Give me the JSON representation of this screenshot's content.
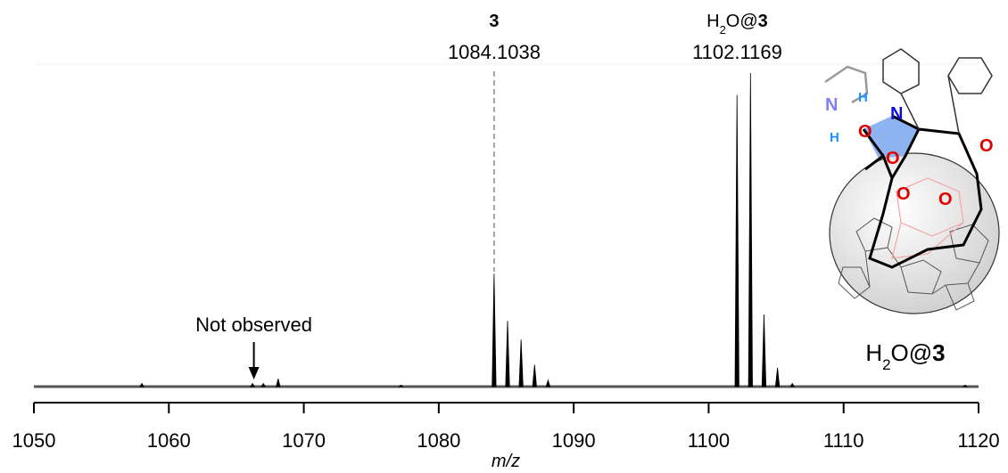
{
  "chart_data": {
    "type": "spectrum",
    "x_label": "m/z",
    "xlim": [
      1050,
      1120
    ],
    "xticks": [
      1050,
      1060,
      1070,
      1080,
      1090,
      1100,
      1110,
      1120
    ],
    "ylim": [
      0,
      100
    ],
    "series": [
      {
        "color": "#000000",
        "x": [
          1058.0,
          1066.2,
          1067.0,
          1068.1,
          1077.2,
          1084.1,
          1085.1,
          1086.1,
          1087.1,
          1088.1,
          1102.1,
          1103.1,
          1104.1,
          1105.1,
          1106.2,
          1119.0
        ],
        "values": [
          1,
          1,
          1,
          2.5,
          0.5,
          36,
          21,
          15,
          7,
          2,
          93,
          100,
          23,
          6,
          1,
          0.5
        ]
      }
    ],
    "annotations": [
      {
        "parts": [
          {
            "text": "3",
            "bold": true
          }
        ],
        "value": 1084.1038,
        "dashed": true
      },
      {
        "parts": [
          {
            "text": "H"
          },
          {
            "text": "2",
            "sub": true
          },
          {
            "text": "O@"
          },
          {
            "text": "3",
            "bold": true
          }
        ],
        "value": 1102.1169,
        "dashed": false
      }
    ],
    "arrow_note": {
      "text": "Not observed",
      "x": 1066.3
    },
    "structure": {
      "caption": [
        {
          "text": "H"
        },
        {
          "text": "2",
          "sub": true
        },
        {
          "text": "O@"
        },
        {
          "text": "3",
          "bold": true
        }
      ],
      "atoms": [
        "N",
        "H",
        "N",
        "O",
        "H",
        "O",
        "O",
        "O",
        "O"
      ]
    }
  }
}
